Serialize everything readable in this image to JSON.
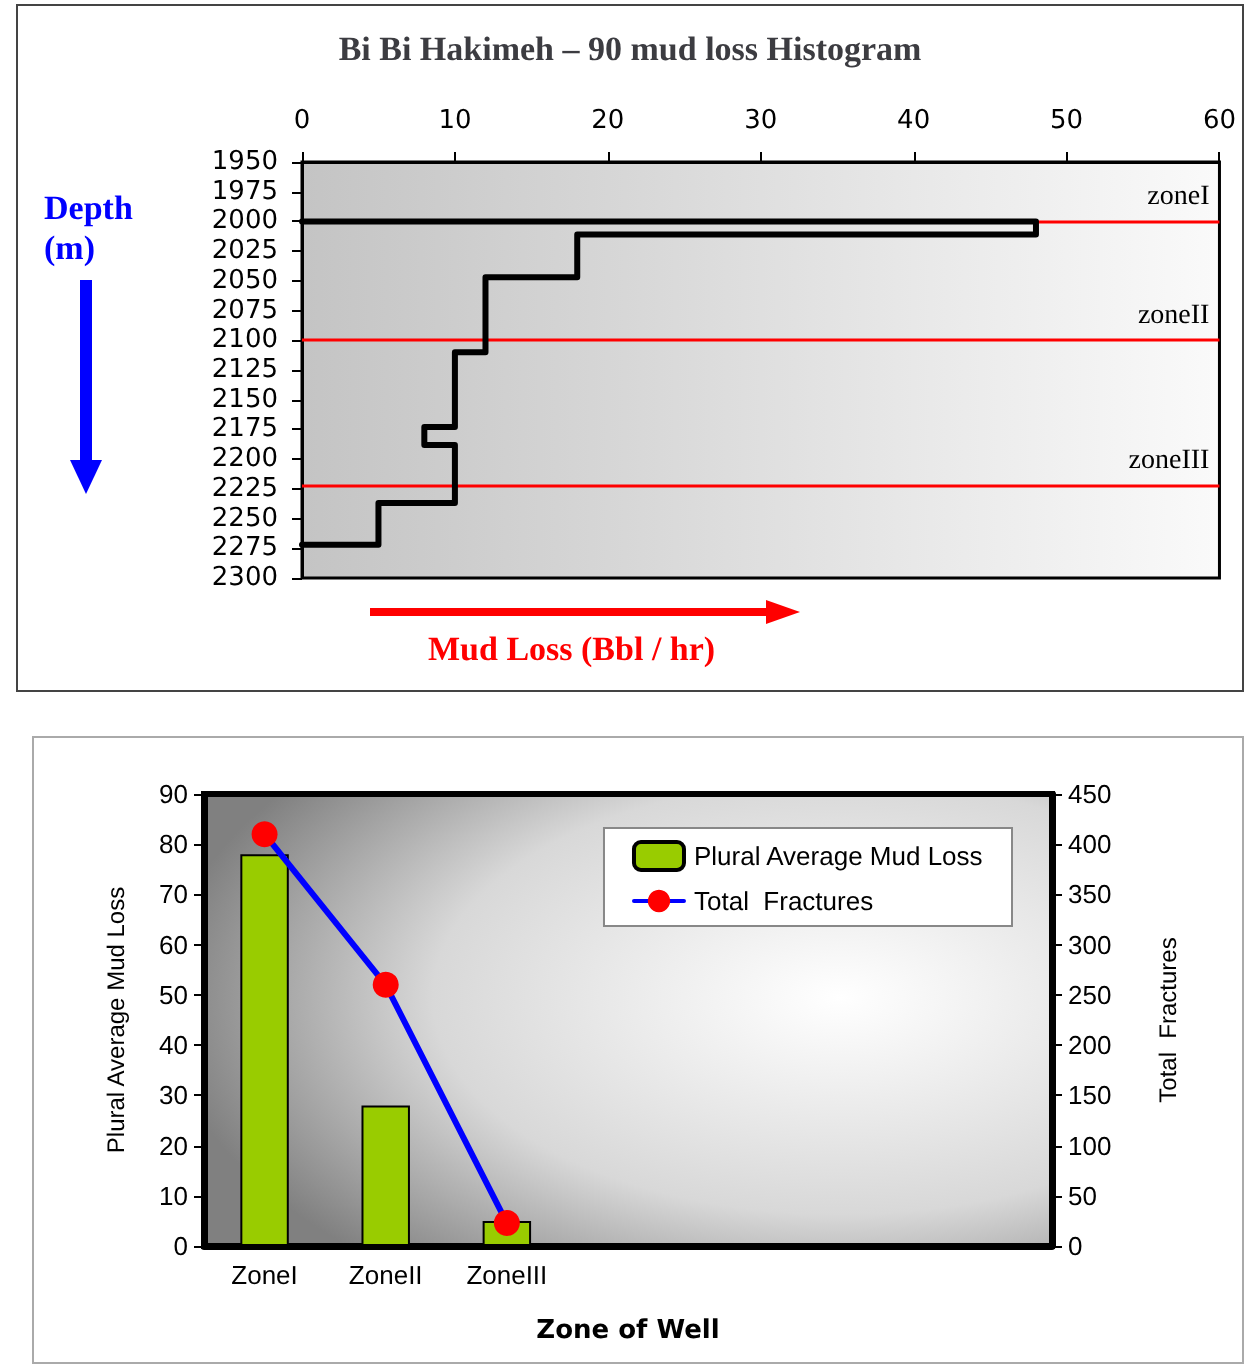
{
  "chart_data": [
    {
      "type": "line",
      "title": "Bi Bi Hakimeh – 90 mud loss Histogram",
      "xlabel": "Mud Loss (Bbl / hr)",
      "ylabel": "Depth (m)",
      "xlim": [
        0,
        60
      ],
      "xticks": [
        0,
        10,
        20,
        30,
        40,
        50,
        60
      ],
      "ylim": [
        2300,
        1950
      ],
      "yticks": [
        1950,
        1975,
        2000,
        2025,
        2050,
        2075,
        2100,
        2125,
        2150,
        2175,
        2200,
        2225,
        2250,
        2275,
        2300
      ],
      "series": [
        {
          "color": "#000000",
          "x": [
            0,
            48,
            48,
            18,
            18,
            12,
            12,
            10,
            10,
            8,
            8,
            10,
            10,
            5,
            5,
            0
          ],
          "values": [
            2000,
            2000,
            2011,
            2011,
            2047,
            2047,
            2110,
            2110,
            2173,
            2173,
            2188,
            2188,
            2237,
            2237,
            2272,
            2272
          ]
        }
      ],
      "ref_lines": [
        {
          "axis": "y",
          "value": 2000,
          "label": "zoneI",
          "color": "#ff0000"
        },
        {
          "axis": "y",
          "value": 2100,
          "label": "zoneII",
          "color": "#ff0000"
        },
        {
          "axis": "y",
          "value": 2222,
          "label": "zoneIII",
          "color": "#ff0000"
        }
      ],
      "marker": "none",
      "grid": false,
      "legend": false
    },
    {
      "type": "bar",
      "xlabel": "Zone of Well",
      "ylabel": "Plural Average Mud Loss",
      "y2label": "Total  Fractures",
      "categories": [
        "ZoneI",
        "ZoneII",
        "ZoneIII",
        null,
        null,
        null,
        null
      ],
      "ylim": [
        0,
        90
      ],
      "yticks": [
        0,
        10,
        20,
        30,
        40,
        50,
        60,
        70,
        80,
        90
      ],
      "y2lim": [
        0,
        450
      ],
      "y2ticks": [
        0,
        50,
        100,
        150,
        200,
        250,
        300,
        350,
        400,
        450
      ],
      "series": [
        {
          "name": "Plural Average Mud Loss",
          "color": "#99cc00",
          "values": [
            78,
            28,
            5,
            null,
            null,
            null,
            null
          ]
        },
        {
          "name": "Total  Fractures",
          "type": "line",
          "axis": "y2",
          "color": "#0000ff",
          "colors": [
            "#ff0000",
            "#ff0000",
            "#ff0000",
            "#ff0000",
            "#ff0000",
            "#ff0000",
            "#ff0000"
          ],
          "values": [
            410,
            260,
            23,
            null,
            null,
            null,
            null
          ]
        }
      ],
      "marker": "circle",
      "legend": "top right",
      "grid": false
    }
  ]
}
